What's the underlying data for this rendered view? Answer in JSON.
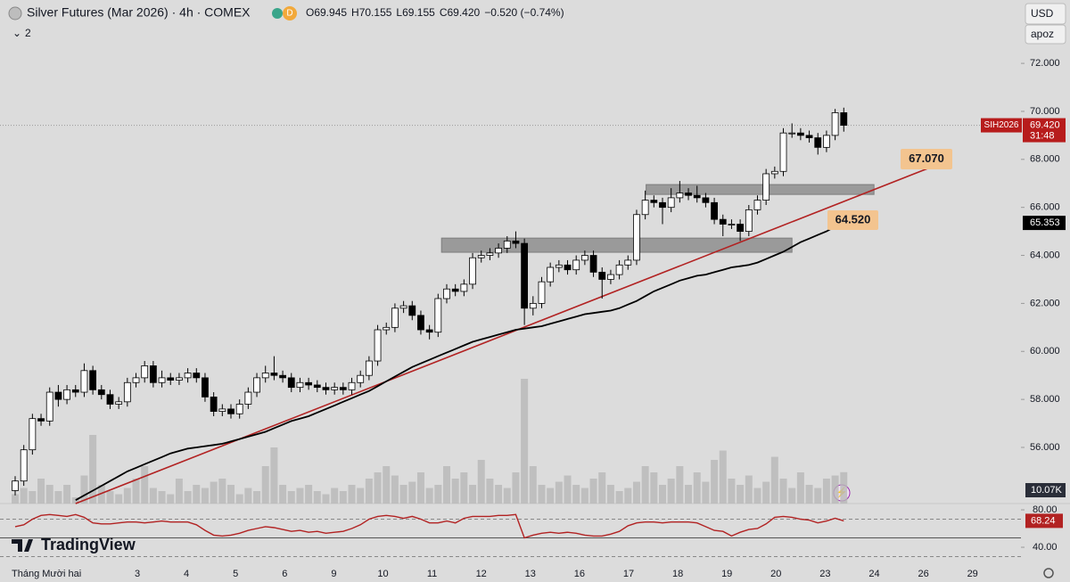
{
  "header": {
    "title": "Silver Futures (Mar 2026) · 4h · COMEX",
    "badge": "D",
    "ohlc": [
      "O69.945",
      "H70.155",
      "L69.155",
      "C69.420",
      "−0.520 (−0.74%)"
    ],
    "indicators": "2",
    "currency": "USD",
    "scale_mode": "apoz",
    "logo": "TradingView"
  },
  "chart_data": {
    "type": "candlestick",
    "symbol": "SIH2026",
    "price_tag": "69.420",
    "countdown": "31:48",
    "open": [
      54.2,
      54.6,
      55.9,
      57.2,
      57.1,
      58.3,
      58.0,
      58.4,
      58.3,
      59.2,
      58.4,
      58.2,
      57.8,
      57.9,
      58.7,
      58.9,
      59.4,
      58.7,
      58.9,
      58.8,
      58.9,
      59.1,
      58.9,
      58.1,
      57.5,
      57.6,
      57.4,
      57.8,
      58.3,
      58.9,
      59.1,
      59.0,
      58.9,
      58.5,
      58.7,
      58.6,
      58.5,
      58.4,
      58.5,
      58.4,
      58.7,
      59.0,
      59.6,
      60.9,
      61.0,
      61.8,
      61.9,
      61.5,
      60.9,
      60.8,
      62.2,
      62.6,
      62.5,
      62.8,
      63.9,
      64.0,
      64.1,
      64.3,
      64.6,
      64.5,
      61.8,
      62.0,
      62.9,
      63.5,
      63.6,
      63.4,
      63.8,
      64.0,
      63.3,
      63.0,
      63.2,
      63.6,
      63.8,
      65.7,
      66.3,
      66.2,
      66.0,
      66.4,
      66.6,
      66.5,
      66.4,
      66.2,
      65.5,
      65.3,
      65.3,
      65.0,
      65.9,
      66.3,
      67.4,
      67.5,
      69.1,
      69.1,
      69.0,
      68.9,
      68.5,
      69.0,
      69.945
    ],
    "high": [
      54.8,
      56.1,
      57.4,
      57.4,
      58.5,
      58.6,
      58.6,
      58.6,
      59.5,
      59.4,
      58.6,
      58.4,
      58.1,
      58.9,
      59.1,
      59.6,
      59.6,
      59.2,
      59.1,
      59.1,
      59.3,
      59.3,
      59.1,
      58.3,
      57.8,
      57.8,
      58.0,
      58.5,
      59.1,
      59.4,
      59.8,
      59.2,
      59.1,
      58.9,
      58.9,
      58.8,
      58.7,
      58.7,
      58.7,
      58.9,
      59.2,
      59.8,
      61.1,
      61.2,
      62.0,
      62.1,
      62.1,
      61.7,
      61.1,
      62.4,
      62.8,
      62.8,
      63.0,
      64.1,
      64.2,
      64.3,
      64.5,
      64.8,
      65.0,
      64.7,
      62.3,
      63.1,
      63.7,
      63.8,
      63.8,
      64.0,
      64.2,
      64.2,
      63.5,
      63.4,
      63.8,
      64.0,
      65.9,
      66.7,
      66.5,
      66.4,
      66.8,
      67.1,
      66.8,
      66.9,
      66.6,
      66.4,
      65.7,
      65.5,
      65.5,
      66.1,
      66.5,
      67.6,
      67.7,
      69.3,
      69.5,
      69.3,
      69.2,
      69.1,
      69.2,
      70.1,
      70.155
    ],
    "low": [
      54.0,
      54.4,
      55.7,
      56.9,
      56.9,
      57.7,
      57.8,
      58.1,
      58.1,
      58.2,
      58.0,
      57.6,
      57.6,
      57.7,
      58.5,
      58.7,
      58.5,
      58.5,
      58.6,
      58.6,
      58.7,
      58.7,
      57.9,
      57.3,
      57.3,
      57.2,
      57.2,
      57.6,
      58.1,
      58.7,
      58.8,
      58.7,
      58.3,
      58.3,
      58.4,
      58.3,
      58.2,
      58.2,
      58.2,
      58.2,
      58.5,
      58.8,
      59.4,
      60.7,
      60.8,
      61.6,
      61.3,
      60.7,
      60.5,
      60.6,
      62.0,
      62.3,
      62.3,
      62.6,
      63.7,
      63.8,
      63.9,
      64.1,
      64.3,
      61.1,
      61.5,
      61.8,
      62.7,
      63.3,
      63.2,
      63.2,
      63.6,
      63.1,
      62.2,
      62.8,
      63.0,
      63.4,
      63.6,
      65.5,
      66.0,
      65.3,
      65.8,
      66.2,
      66.3,
      66.2,
      66.0,
      65.3,
      64.8,
      65.1,
      64.6,
      64.8,
      65.7,
      66.1,
      67.2,
      67.3,
      68.9,
      68.8,
      68.7,
      68.2,
      68.3,
      68.8,
      69.155
    ],
    "close": [
      54.6,
      55.9,
      57.2,
      57.1,
      58.3,
      58.0,
      58.4,
      58.3,
      59.2,
      58.4,
      58.2,
      57.8,
      57.9,
      58.7,
      58.9,
      59.4,
      58.7,
      58.9,
      58.8,
      58.9,
      59.1,
      58.9,
      58.1,
      57.5,
      57.6,
      57.4,
      57.8,
      58.3,
      58.9,
      59.1,
      59.0,
      58.9,
      58.5,
      58.7,
      58.6,
      58.5,
      58.4,
      58.5,
      58.4,
      58.7,
      59.0,
      59.6,
      60.9,
      61.0,
      61.8,
      61.9,
      61.5,
      60.9,
      60.8,
      62.2,
      62.6,
      62.5,
      62.8,
      63.9,
      64.0,
      64.1,
      64.3,
      64.6,
      64.5,
      61.8,
      62.0,
      62.9,
      63.5,
      63.6,
      63.4,
      63.8,
      64.0,
      63.3,
      63.0,
      63.2,
      63.6,
      63.8,
      65.7,
      66.3,
      66.2,
      66.0,
      66.4,
      66.6,
      66.5,
      66.4,
      66.2,
      65.5,
      65.3,
      65.3,
      65.0,
      65.9,
      66.3,
      67.4,
      67.5,
      69.1,
      69.1,
      69.0,
      68.9,
      68.5,
      69.0,
      69.945,
      69.42
    ],
    "ylim": [
      53.66,
      74.64
    ],
    "yticks": [
      {
        "value": 56,
        "label": "56.000"
      },
      {
        "value": 58,
        "label": "58.000"
      },
      {
        "value": 60,
        "label": "60.000"
      },
      {
        "value": 62,
        "label": "62.000"
      },
      {
        "value": 64,
        "label": "64.000"
      },
      {
        "value": 66,
        "label": "66.000"
      },
      {
        "value": 68,
        "label": "68.000"
      },
      {
        "value": 70,
        "label": "70.000"
      },
      {
        "value": 72,
        "label": "72.000"
      }
    ],
    "x_labels": [
      "Tháng Mười hai",
      "3",
      "4",
      "5",
      "6",
      "9",
      "10",
      "11",
      "12",
      "13",
      "16",
      "17",
      "18",
      "19",
      "20",
      "23",
      "24",
      "26",
      "29"
    ],
    "ema": {
      "color": "#000000",
      "values": [
        null,
        null,
        null,
        null,
        null,
        null,
        null,
        53.8,
        54.0,
        54.2,
        54.4,
        54.6,
        54.8,
        55.0,
        55.15,
        55.3,
        55.45,
        55.6,
        55.75,
        55.85,
        55.95,
        56.0,
        56.05,
        56.1,
        56.15,
        56.25,
        56.35,
        56.45,
        56.55,
        56.65,
        56.8,
        56.95,
        57.1,
        57.2,
        57.3,
        57.45,
        57.6,
        57.75,
        57.9,
        58.05,
        58.2,
        58.35,
        58.55,
        58.75,
        58.95,
        59.15,
        59.35,
        59.5,
        59.65,
        59.8,
        59.95,
        60.1,
        60.25,
        60.4,
        60.5,
        60.6,
        60.7,
        60.8,
        60.9,
        60.95,
        61.0,
        61.05,
        61.15,
        61.25,
        61.35,
        61.45,
        61.55,
        61.6,
        61.65,
        61.7,
        61.8,
        61.95,
        62.1,
        62.3,
        62.5,
        62.65,
        62.8,
        62.95,
        63.05,
        63.15,
        63.2,
        63.3,
        63.4,
        63.5,
        63.55,
        63.6,
        63.7,
        63.85,
        64.0,
        64.15,
        64.35,
        64.55,
        64.7,
        64.85,
        65.0,
        65.2,
        65.353
      ]
    },
    "trendline": {
      "color": "#b22222",
      "start": {
        "index": 7,
        "price": 53.66
      },
      "end": {
        "index": 106,
        "price": 67.66
      }
    },
    "zones": [
      {
        "start": 49.4,
        "end": 90,
        "top": 64.72,
        "bottom": 64.13
      },
      {
        "start": 73.1,
        "end": 99.5,
        "top": 66.95,
        "bottom": 66.54
      }
    ],
    "annotations": [
      "67.070",
      "64.520"
    ],
    "volume": {
      "color": "#b8b8b8",
      "last_label": "10.07K",
      "values": [
        3,
        5,
        4,
        8,
        6,
        4,
        6,
        2,
        9,
        22,
        6,
        4,
        3,
        5,
        8,
        12,
        5,
        4,
        3,
        8,
        4,
        6,
        5,
        7,
        8,
        6,
        3,
        5,
        4,
        12,
        18,
        6,
        4,
        5,
        6,
        4,
        3,
        5,
        4,
        6,
        5,
        8,
        10,
        12,
        9,
        6,
        7,
        10,
        5,
        6,
        12,
        8,
        10,
        6,
        14,
        8,
        6,
        5,
        10,
        40,
        12,
        6,
        5,
        7,
        9,
        6,
        5,
        8,
        10,
        6,
        4,
        5,
        7,
        12,
        10,
        6,
        8,
        12,
        6,
        10,
        7,
        14,
        17,
        8,
        6,
        9,
        5,
        7,
        15,
        8,
        5,
        10,
        6,
        5,
        8,
        9,
        10.07
      ]
    },
    "rsi": {
      "color": "#b22222",
      "ylim": [
        26.7,
        86.7
      ],
      "levels": [
        70,
        50,
        30
      ],
      "yticks": [
        {
          "value": 80,
          "label": "80.00"
        },
        {
          "value": 40,
          "label": "40.00"
        }
      ],
      "values": [
        62,
        64,
        70,
        74,
        75,
        74,
        73,
        75,
        72,
        66,
        65,
        65,
        66,
        67,
        67,
        66,
        67,
        68,
        67,
        67,
        67,
        64,
        58,
        53,
        52,
        53,
        55,
        58,
        60,
        62,
        61,
        59,
        57,
        58,
        56,
        57,
        55,
        56,
        57,
        60,
        64,
        70,
        73,
        74,
        73,
        71,
        73,
        70,
        66,
        66,
        68,
        66,
        71,
        73,
        73,
        73,
        74,
        74,
        75,
        50,
        53,
        55,
        56,
        55,
        56,
        55,
        53,
        52,
        52,
        54,
        57,
        63,
        66,
        67,
        67,
        66,
        67,
        67,
        67,
        66,
        62,
        58,
        57,
        52,
        56,
        59,
        60,
        65,
        72,
        73,
        72,
        70,
        69,
        66,
        68,
        71,
        68.24
      ]
    }
  }
}
